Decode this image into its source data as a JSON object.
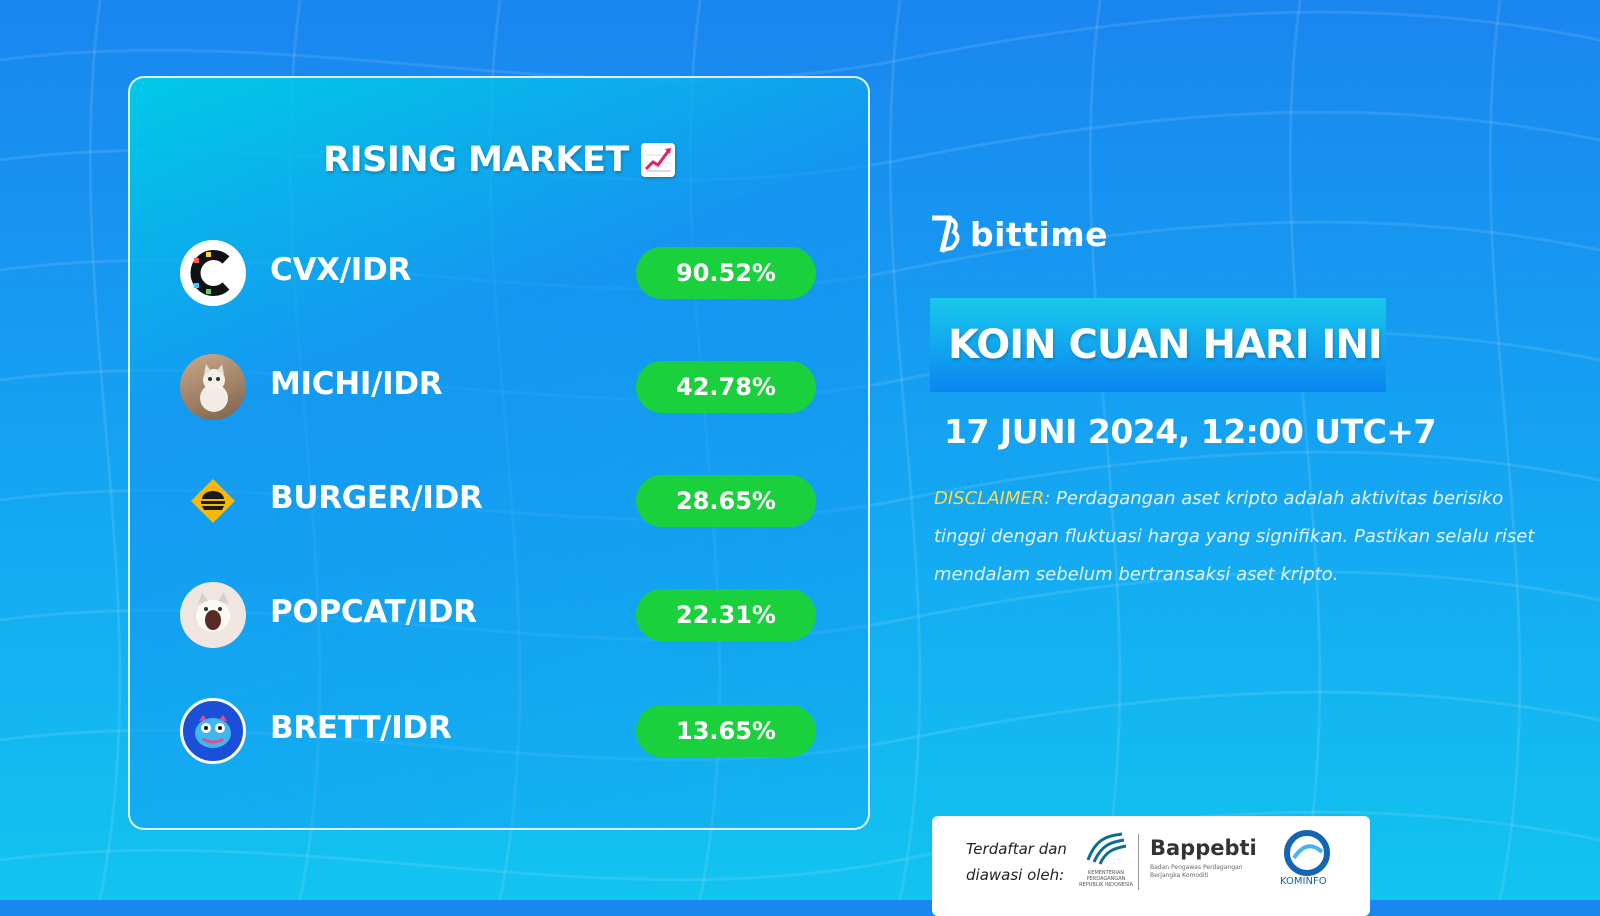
{
  "panel": {
    "title": "RISING MARKET",
    "title_icon": "chart-increasing-icon",
    "rows": [
      {
        "pair": "CVX/IDR",
        "change": "90.52%",
        "icon": "convex-icon"
      },
      {
        "pair": "MICHI/IDR",
        "change": "42.78%",
        "icon": "michi-cat-icon"
      },
      {
        "pair": "BURGER/IDR",
        "change": "28.65%",
        "icon": "burger-icon"
      },
      {
        "pair": "POPCAT/IDR",
        "change": "22.31%",
        "icon": "popcat-icon"
      },
      {
        "pair": "BRETT/IDR",
        "change": "13.65%",
        "icon": "brett-icon"
      }
    ],
    "change_color": "#1ad13d"
  },
  "brand": {
    "name": "bittime"
  },
  "banner": {
    "title": "KOIN CUAN HARI INI"
  },
  "date": "17 JUNI 2024, 12:00 UTC+7",
  "disclaimer": {
    "label": "DISCLAIMER",
    "text": ": Perdagangan aset kripto adalah aktivitas berisiko tinggi dengan fluktuasi harga yang signifikan. Pastikan selalu riset mendalam sebelum bertransaksi aset kripto."
  },
  "registration": {
    "text": "Terdaftar dan diawasi oleh:",
    "kemendag": "KEMENTERIAN PERDAGANGAN REPUBLIK INDONESIA",
    "bappebti": "Bappebti",
    "bappebti_sub": "Badan Pengawas Perdagangan Berjangka Komoditi",
    "kominfo": "KOMINFO"
  }
}
